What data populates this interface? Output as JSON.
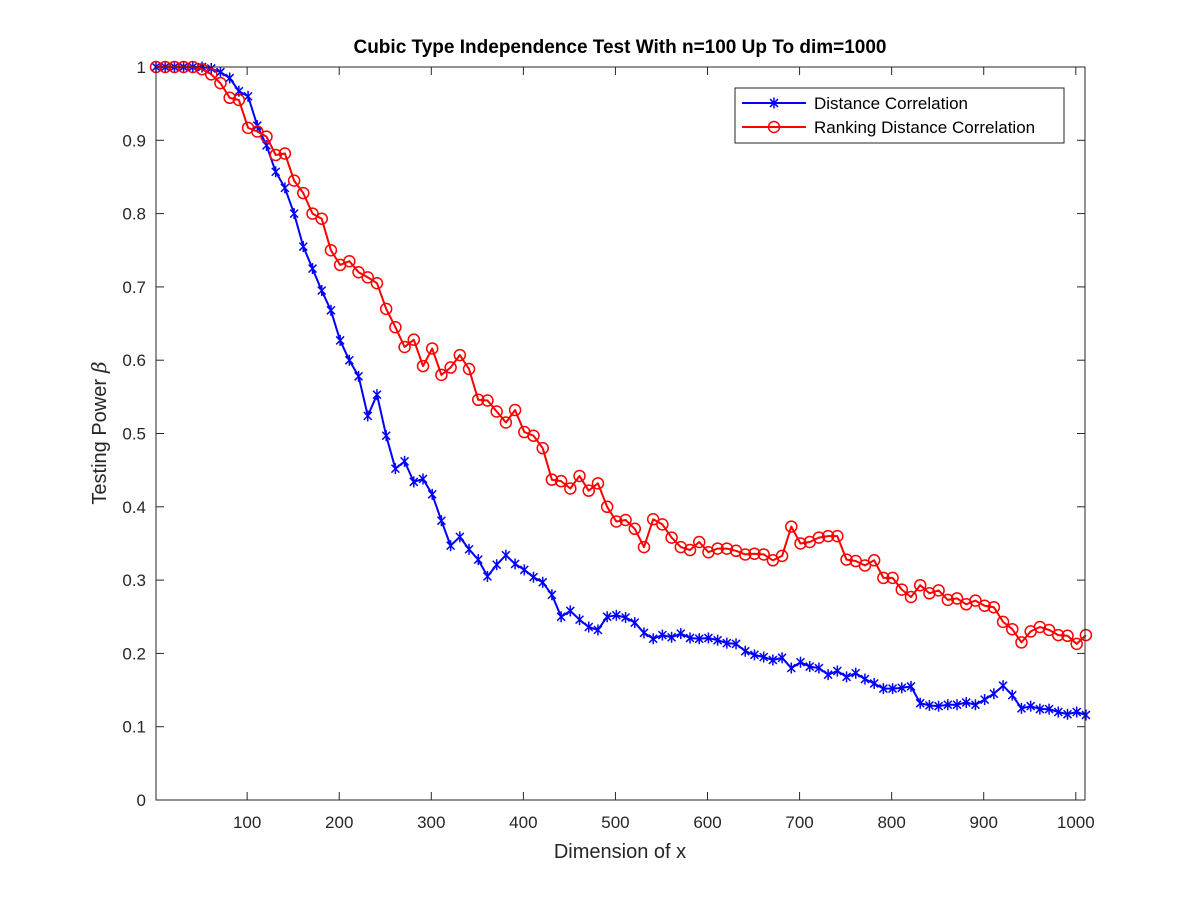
{
  "chart_data": {
    "type": "line",
    "title": "Cubic Type Independence Test With n=100 Up To dim=1000",
    "xlabel": "Dimension of x",
    "ylabel": "Testing Power",
    "ylabel_symbol": "β",
    "xlim": [
      1,
      1010
    ],
    "ylim": [
      0,
      1
    ],
    "xticks": [
      100,
      200,
      300,
      400,
      500,
      600,
      700,
      800,
      900,
      1000
    ],
    "yticks": [
      0,
      0.1,
      0.2,
      0.3,
      0.4,
      0.5,
      0.6,
      0.7,
      0.8,
      0.9,
      1
    ],
    "ytick_labels": [
      "0",
      "0.1",
      "0.2",
      "0.3",
      "0.4",
      "0.5",
      "0.6",
      "0.7",
      "0.8",
      "0.9",
      "1"
    ],
    "grid": false,
    "legend_position": "top-right",
    "x": [
      1,
      11,
      21,
      31,
      41,
      51,
      61,
      71,
      81,
      91,
      101,
      111,
      121,
      131,
      141,
      151,
      161,
      171,
      181,
      191,
      201,
      211,
      221,
      231,
      241,
      251,
      261,
      271,
      281,
      291,
      301,
      311,
      321,
      331,
      341,
      351,
      361,
      371,
      381,
      391,
      401,
      411,
      421,
      431,
      441,
      451,
      461,
      471,
      481,
      491,
      501,
      511,
      521,
      531,
      541,
      551,
      561,
      571,
      581,
      591,
      601,
      611,
      621,
      631,
      641,
      651,
      661,
      671,
      681,
      691,
      701,
      711,
      721,
      731,
      741,
      751,
      761,
      771,
      781,
      791,
      801,
      811,
      821,
      831,
      841,
      851,
      861,
      871,
      881,
      891,
      901,
      911,
      921,
      931,
      941,
      951,
      961,
      971,
      981,
      991,
      1001,
      1011
    ],
    "series": [
      {
        "name": "Distance Correlation",
        "color": "#0000ff",
        "marker": "asterisk",
        "values": [
          1.0,
          1.0,
          1.0,
          1.0,
          1.0,
          1.0,
          0.998,
          0.993,
          0.985,
          0.967,
          0.96,
          0.92,
          0.893,
          0.857,
          0.835,
          0.8,
          0.755,
          0.725,
          0.695,
          0.668,
          0.627,
          0.6,
          0.578,
          0.524,
          0.553,
          0.497,
          0.452,
          0.462,
          0.434,
          0.438,
          0.417,
          0.381,
          0.347,
          0.359,
          0.342,
          0.328,
          0.305,
          0.321,
          0.334,
          0.322,
          0.314,
          0.304,
          0.297,
          0.28,
          0.25,
          0.258,
          0.246,
          0.236,
          0.232,
          0.25,
          0.252,
          0.249,
          0.242,
          0.228,
          0.22,
          0.225,
          0.222,
          0.227,
          0.221,
          0.22,
          0.221,
          0.218,
          0.214,
          0.213,
          0.203,
          0.198,
          0.195,
          0.191,
          0.194,
          0.18,
          0.188,
          0.182,
          0.18,
          0.171,
          0.176,
          0.168,
          0.173,
          0.165,
          0.159,
          0.152,
          0.152,
          0.153,
          0.155,
          0.132,
          0.129,
          0.128,
          0.13,
          0.13,
          0.133,
          0.13,
          0.137,
          0.145,
          0.156,
          0.143,
          0.125,
          0.128,
          0.124,
          0.124,
          0.12,
          0.117,
          0.12,
          0.116
        ]
      },
      {
        "name": "Ranking Distance Correlation",
        "color": "#ff0000",
        "marker": "circle",
        "values": [
          1.0,
          1.0,
          1.0,
          1.0,
          1.0,
          0.997,
          0.99,
          0.978,
          0.958,
          0.955,
          0.917,
          0.912,
          0.905,
          0.88,
          0.882,
          0.845,
          0.828,
          0.8,
          0.793,
          0.75,
          0.73,
          0.735,
          0.72,
          0.713,
          0.705,
          0.67,
          0.645,
          0.618,
          0.628,
          0.592,
          0.616,
          0.58,
          0.59,
          0.607,
          0.588,
          0.546,
          0.545,
          0.53,
          0.515,
          0.532,
          0.502,
          0.497,
          0.48,
          0.437,
          0.435,
          0.425,
          0.442,
          0.422,
          0.432,
          0.4,
          0.38,
          0.382,
          0.37,
          0.345,
          0.383,
          0.376,
          0.358,
          0.345,
          0.341,
          0.352,
          0.338,
          0.343,
          0.343,
          0.34,
          0.335,
          0.336,
          0.335,
          0.327,
          0.333,
          0.373,
          0.35,
          0.352,
          0.358,
          0.36,
          0.36,
          0.328,
          0.326,
          0.32,
          0.327,
          0.303,
          0.303,
          0.287,
          0.277,
          0.293,
          0.282,
          0.286,
          0.273,
          0.275,
          0.267,
          0.272,
          0.265,
          0.263,
          0.243,
          0.233,
          0.215,
          0.23,
          0.236,
          0.232,
          0.225,
          0.224,
          0.213,
          0.225
        ]
      }
    ]
  }
}
